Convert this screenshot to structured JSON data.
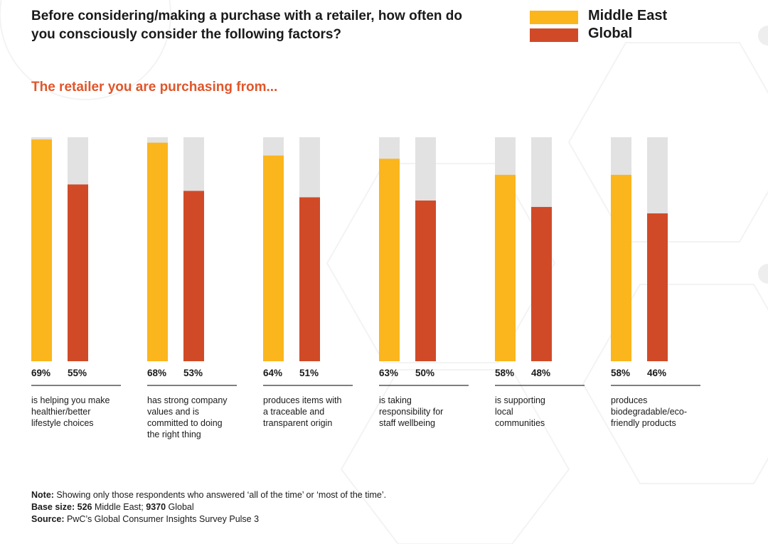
{
  "title": "Before considering/making a purchase with a retailer, how often do you consciously consider the following factors?",
  "subtitle": "The retailer you are purchasing from...",
  "colors": {
    "middle_east": "#FBB51D",
    "global": "#D04A28",
    "track": "#E2E2E2",
    "subtitle": "#E0562A"
  },
  "chart_data": {
    "type": "bar",
    "categories": [
      "is helping you make healthier/better lifestyle choices",
      "has strong company values and is committed to doing the right thing",
      "produces items with a traceable and transparent origin",
      "is taking responsibility for staff wellbeing",
      "is supporting local communities",
      "produces biodegradable/eco-friendly products"
    ],
    "series": [
      {
        "name": "Middle East",
        "values": [
          69,
          68,
          64,
          63,
          58,
          58
        ]
      },
      {
        "name": "Global",
        "values": [
          55,
          53,
          51,
          50,
          48,
          46
        ]
      }
    ],
    "value_labels": {
      "Middle East": [
        "69%",
        "68%",
        "64%",
        "63%",
        "58%",
        "58%"
      ],
      "Global": [
        "55%",
        "53%",
        "51%",
        "50%",
        "48%",
        "46%"
      ]
    },
    "category_lines": [
      [
        "is helping you make",
        "healthier/better",
        "lifestyle choices"
      ],
      [
        "has strong company",
        "values and is",
        "committed to doing",
        "the right thing"
      ],
      [
        "produces items with",
        "a traceable and",
        "transparent origin"
      ],
      [
        "is taking",
        "responsibility for",
        "staff wellbeing"
      ],
      [
        "is supporting",
        "local",
        "communities"
      ],
      [
        "produces",
        "biodegradable/eco-",
        "friendly products"
      ]
    ],
    "legend_position": "top-right",
    "grid": false
  },
  "notes": {
    "note_label": "Note:",
    "note_text": " Showing only those respondents who answered ‘all of the time’ or ‘most of the time’.",
    "base_label": "Base size:",
    "base_me_num": " 526",
    "base_me_text": " Middle East;",
    "base_gl_num": " 9370",
    "base_gl_text": " Global",
    "source_label": "Source:",
    "source_text": " PwC’s Global Consumer Insights Survey Pulse 3"
  }
}
